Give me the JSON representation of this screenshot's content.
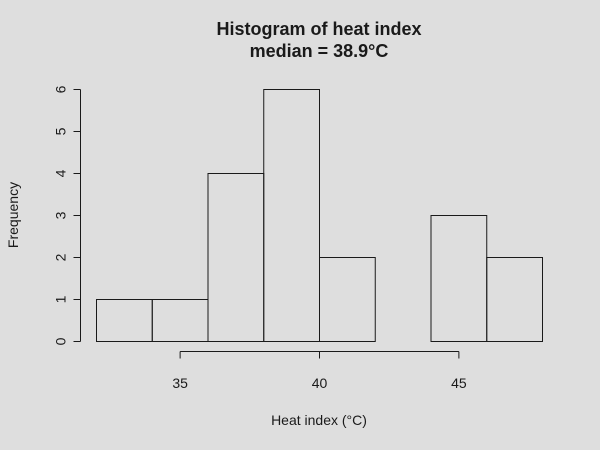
{
  "chart_data": {
    "type": "bar",
    "title": "Histogram of heat index",
    "subtitle": "median = 38.9°C",
    "xlabel": "Heat index (°C)",
    "ylabel": "Frequency",
    "bins": [
      {
        "from": 32,
        "to": 34,
        "count": 1
      },
      {
        "from": 34,
        "to": 36,
        "count": 1
      },
      {
        "from": 36,
        "to": 38,
        "count": 4
      },
      {
        "from": 38,
        "to": 40,
        "count": 6
      },
      {
        "from": 40,
        "to": 42,
        "count": 2
      },
      {
        "from": 42,
        "to": 44,
        "count": 0
      },
      {
        "from": 44,
        "to": 46,
        "count": 3
      },
      {
        "from": 46,
        "to": 48,
        "count": 2
      }
    ],
    "xlim": [
      32,
      48
    ],
    "ylim": [
      0,
      6
    ],
    "xticks": [
      35,
      40,
      45
    ],
    "yticks": [
      0,
      1,
      2,
      3,
      4,
      5,
      6
    ],
    "grid": false,
    "background": "#dedede",
    "bar_fill": "none",
    "bar_stroke": "#1a1a1a"
  }
}
